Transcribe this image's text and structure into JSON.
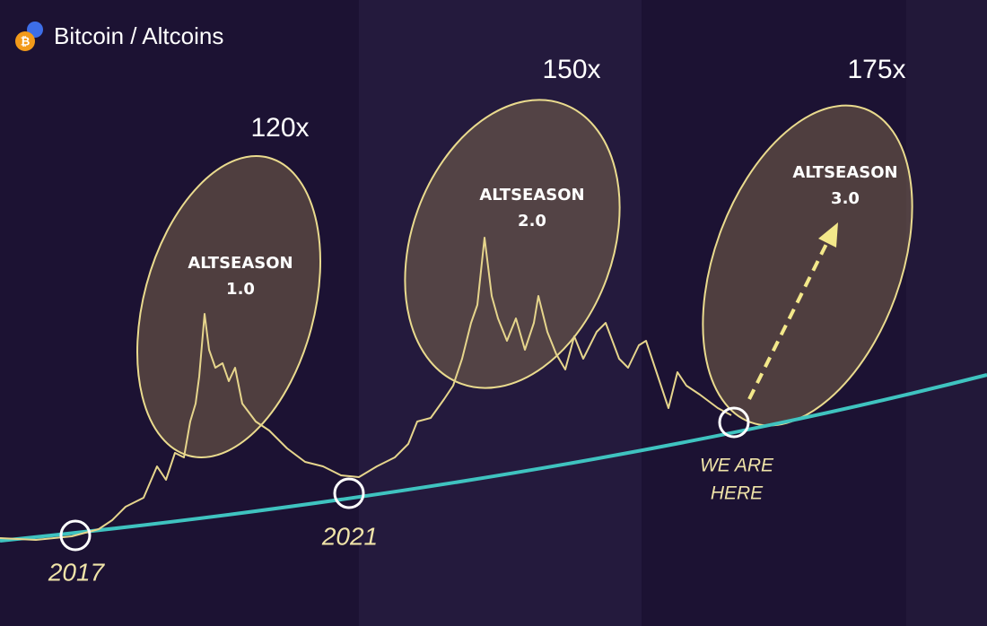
{
  "header": {
    "title": "Bitcoin / Altcoins"
  },
  "annotations": {
    "multipliers": [
      "120x",
      "150x",
      "175x"
    ],
    "seasons": [
      {
        "line1": "ALTSEASON",
        "line2": "1.0"
      },
      {
        "line1": "ALTSEASON",
        "line2": "2.0"
      },
      {
        "line1": "ALTSEASON",
        "line2": "3.0"
      }
    ],
    "years": [
      "2017",
      "2021"
    ],
    "marker": [
      "WE ARE",
      "HERE"
    ]
  }
}
